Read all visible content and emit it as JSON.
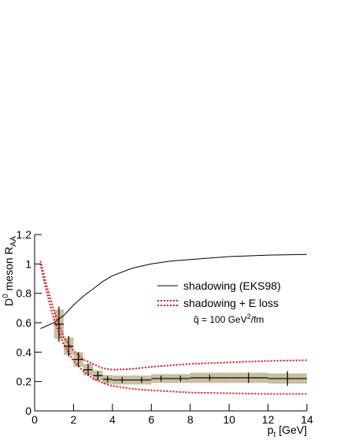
{
  "chart_data": {
    "type": "line",
    "y_label": {
      "main": "D",
      "sup": "0",
      "rest": " meson R",
      "sub": "AA"
    },
    "x_label": {
      "main": "p",
      "sub": "t",
      "rest": " [GeV]"
    },
    "xlim": [
      0,
      14
    ],
    "xticks": [
      0,
      2,
      4,
      6,
      8,
      10,
      12,
      14
    ],
    "ylim": [
      0,
      1.2
    ],
    "yticks": [
      0,
      0.2,
      0.4,
      0.6,
      0.8,
      1,
      1.2
    ],
    "series": [
      {
        "name": "shadowing (EKS98)",
        "color": "#000000",
        "x": [
          0.3,
          1,
          1.5,
          2,
          2.5,
          3,
          3.5,
          4,
          5,
          6,
          7,
          8,
          10,
          12,
          14
        ],
        "values": [
          0.56,
          0.6,
          0.65,
          0.72,
          0.78,
          0.83,
          0.88,
          0.92,
          0.97,
          1.0,
          1.02,
          1.03,
          1.05,
          1.06,
          1.065
        ]
      },
      {
        "name": "shadowing + E loss",
        "color": "#e8141e",
        "x": [
          0.3,
          0.6,
          1,
          1.5,
          2,
          2.5,
          3,
          3.5,
          4,
          5,
          6,
          8,
          10,
          12,
          14
        ],
        "upper": [
          1.02,
          0.86,
          0.68,
          0.5,
          0.41,
          0.35,
          0.32,
          0.29,
          0.28,
          0.285,
          0.3,
          0.32,
          0.33,
          0.34,
          0.345
        ],
        "lower": [
          1.0,
          0.82,
          0.62,
          0.45,
          0.34,
          0.27,
          0.22,
          0.19,
          0.17,
          0.15,
          0.14,
          0.125,
          0.12,
          0.115,
          0.115
        ]
      }
    ],
    "points": {
      "color": "#000000",
      "syst_color": "#c8bfa0",
      "x": [
        1.25,
        1.75,
        2.25,
        2.75,
        3.25,
        3.75,
        4.5,
        5.5,
        6.5,
        7.5,
        9,
        11,
        13
      ],
      "xwidths": [
        0.5,
        0.5,
        0.5,
        0.5,
        0.5,
        0.5,
        1,
        1,
        1,
        1,
        2,
        2,
        2
      ],
      "values": [
        0.59,
        0.44,
        0.35,
        0.28,
        0.24,
        0.215,
        0.21,
        0.21,
        0.22,
        0.22,
        0.225,
        0.225,
        0.22
      ],
      "errors": [
        0.12,
        0.07,
        0.05,
        0.04,
        0.03,
        0.02,
        0.02,
        0.02,
        0.02,
        0.02,
        0.02,
        0.035,
        0.05
      ],
      "syst": [
        0.1,
        0.06,
        0.05,
        0.04,
        0.035,
        0.03,
        0.03,
        0.03,
        0.03,
        0.03,
        0.035,
        0.035,
        0.035
      ]
    },
    "annotation": {
      "main": "q̂ = 100 GeV",
      "sup": "2",
      "rest": "/fm"
    }
  }
}
